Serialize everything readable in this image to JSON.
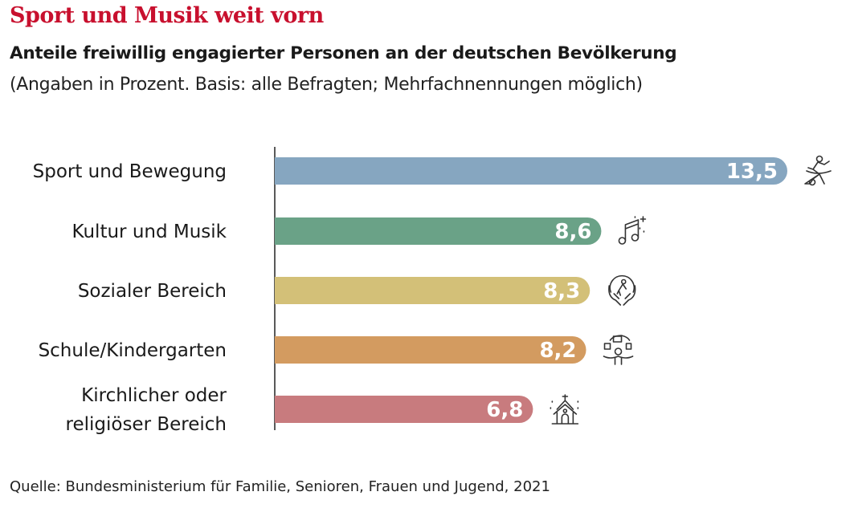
{
  "title": "Sport und Musik weit vorn",
  "subtitle": "Anteile freiwillig engagierter Personen an der deutschen Bevölkerung",
  "note": "(Angaben in Prozent. Basis: alle Befragten; Mehrfachnennungen möglich)",
  "source": "Quelle: Bundesministerium für Familie, Senioren, Frauen und Jugend, 2021",
  "colors": {
    "title": "#c8102e"
  },
  "chart_data": {
    "type": "bar",
    "orientation": "horizontal",
    "categories": [
      [
        "Sport und Bewegung"
      ],
      [
        "Kultur und Musik"
      ],
      [
        "Sozialer Bereich"
      ],
      [
        "Schule/Kindergarten"
      ],
      [
        "Kirchlicher oder",
        "religiöser Bereich"
      ]
    ],
    "values": [
      13.5,
      8.6,
      8.3,
      8.2,
      6.8
    ],
    "value_labels": [
      "13,5",
      "8,6",
      "8,3",
      "8,2",
      "6,8"
    ],
    "bar_colors": [
      "#86a6c0",
      "#6aa287",
      "#d3c078",
      "#d39b60",
      "#c87b7e"
    ],
    "icons": [
      "soccer-player-icon",
      "music-note-icon",
      "caring-hands-icon",
      "juggling-books-icon",
      "church-icon"
    ],
    "xlim": [
      0,
      13.5
    ],
    "grid": false,
    "legend": "none"
  }
}
